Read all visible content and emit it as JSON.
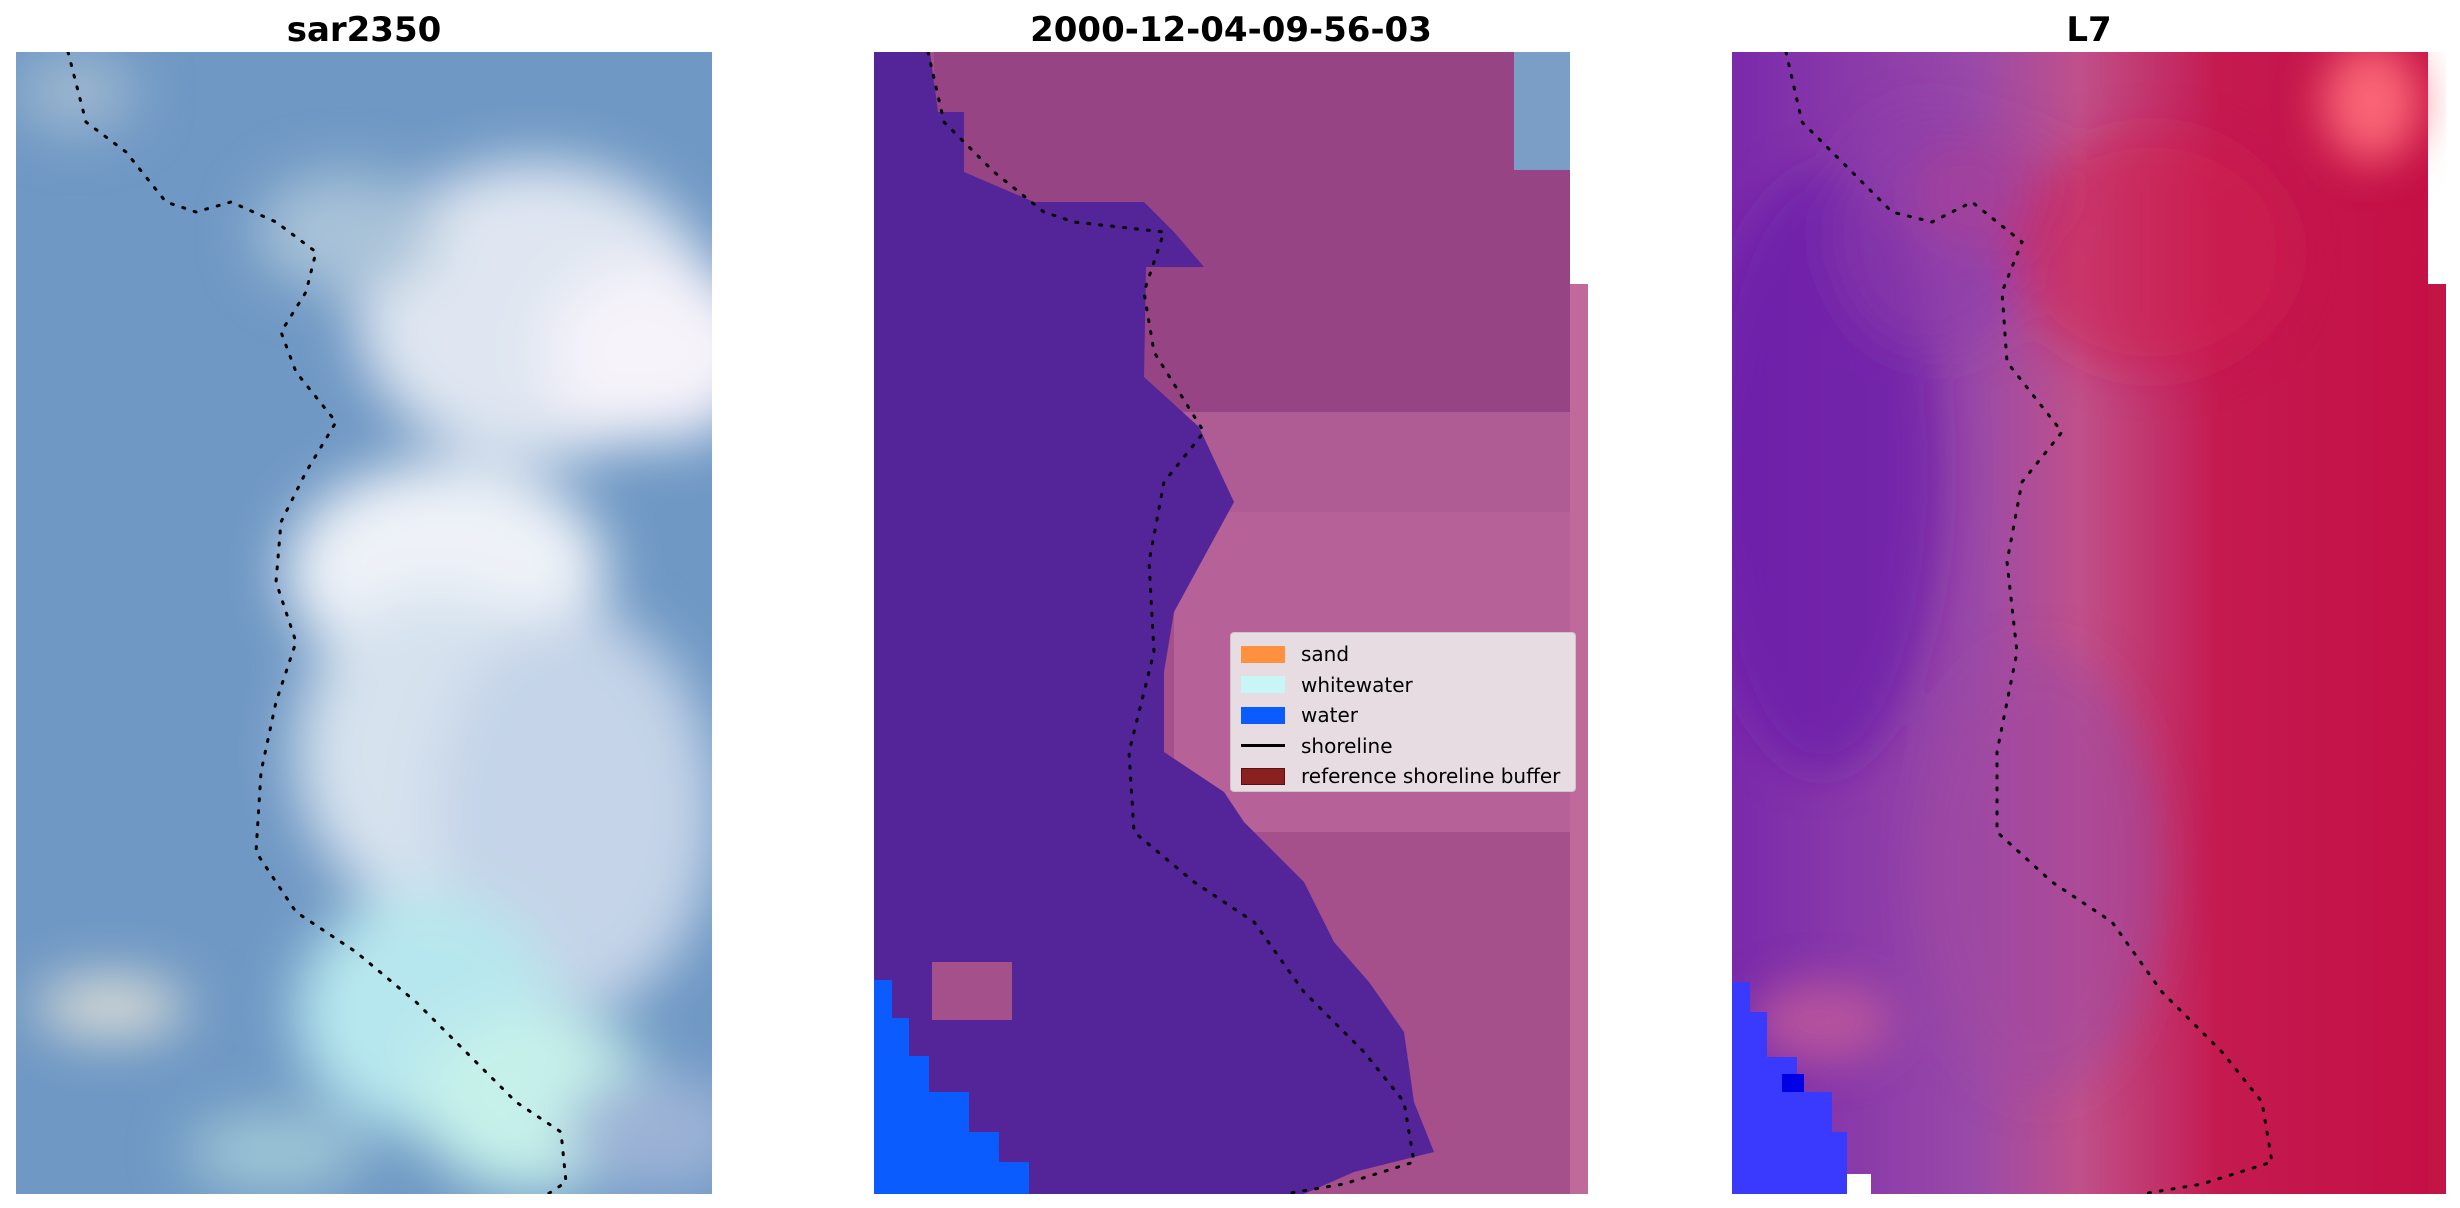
{
  "panels": [
    {
      "title": "sar2350"
    },
    {
      "title": "2000-12-04-09-56-03"
    },
    {
      "title": "L7"
    }
  ],
  "legend": {
    "items": [
      {
        "label": "sand",
        "color": "#ff9040"
      },
      {
        "label": "whitewater",
        "color": "#c8f5f5"
      },
      {
        "label": "water",
        "color": "#0a5cff"
      },
      {
        "label": "shoreline",
        "color": "#000000"
      },
      {
        "label": "reference shoreline buffer",
        "color": "#8b2020"
      }
    ]
  },
  "colors": {
    "rgb_water": "#6f98c4",
    "rgb_whitewater": "#e4eef6",
    "classified_water": "#542598",
    "classified_land": "#a8528c",
    "index_land": "#c21445",
    "index_water": "#7a2aaa"
  }
}
